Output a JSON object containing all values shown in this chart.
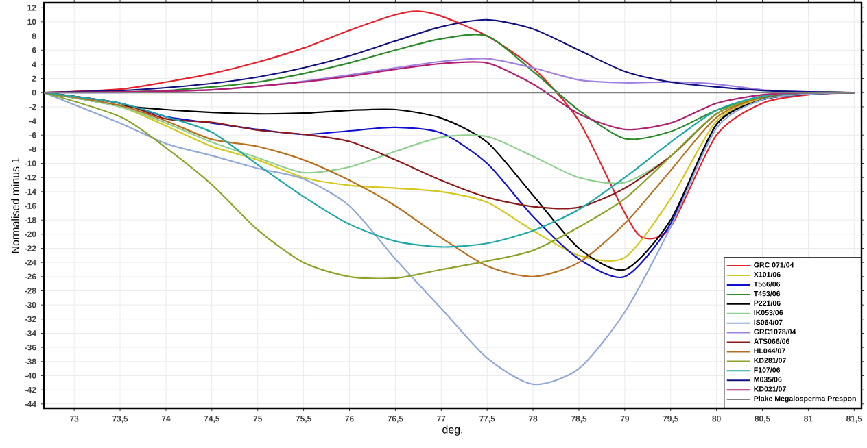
{
  "chart_data": {
    "type": "line",
    "xlabel": "deg.",
    "ylabel": "Normalised minus 1",
    "x": [
      72.67,
      73.5,
      74,
      74.5,
      75,
      75.5,
      76,
      76.5,
      77,
      77.5,
      78,
      78.5,
      79,
      79.5,
      80,
      80.5,
      81,
      81.5
    ],
    "xlim": [
      72.67,
      81.58
    ],
    "ylim": [
      -44.6,
      12.7
    ],
    "xticks": [
      73,
      {
        "value": 73.5,
        "label": "73,5"
      },
      74,
      {
        "value": 74.5,
        "label": "74,5"
      },
      75,
      {
        "value": 75.5,
        "label": "75,5"
      },
      76,
      {
        "value": 76.5,
        "label": "76,5"
      },
      77,
      {
        "value": 77.5,
        "label": "77,5"
      },
      78,
      {
        "value": 78.5,
        "label": "78,5"
      },
      79,
      {
        "value": 79.5,
        "label": "79,5"
      },
      80,
      {
        "value": 80.5,
        "label": "80,5"
      },
      81,
      {
        "value": 81.5,
        "label": "81,5"
      }
    ],
    "yticks": [
      12,
      10,
      8,
      6,
      4,
      2,
      0,
      -2,
      -4,
      -6,
      -8,
      -10,
      -12,
      -14,
      -16,
      -18,
      -20,
      -22,
      -24,
      -26,
      -28,
      -30,
      -32,
      -34,
      -36,
      -38,
      -40,
      -42,
      -44
    ],
    "grid": true,
    "legend": "bottom right",
    "marker": "none",
    "line_style": "solid",
    "series": [
      {
        "name": "GRC 071/04",
        "color": "#e8202a",
        "x": [
          72.67,
          73.5,
          74,
          74.5,
          75,
          75.5,
          76,
          76.5,
          76.75,
          77,
          77.5,
          78,
          78.5,
          79,
          79.2,
          79.5,
          80,
          80.5,
          81,
          81.5
        ],
        "values": [
          0,
          0.5,
          1.5,
          2.7,
          4.3,
          6.3,
          8.8,
          11,
          11.5,
          10.8,
          8,
          3.5,
          -4,
          -17,
          -20.5,
          -19,
          -6,
          -1.5,
          -0.3,
          0
        ]
      },
      {
        "name": "X101/06",
        "color": "#d4c81c",
        "values": [
          0,
          -2,
          -4.7,
          -7.6,
          -9.5,
          -12,
          -13.1,
          -13.5,
          -14,
          -15.5,
          -19.5,
          -23,
          -23.3,
          -15,
          -4,
          -0.8,
          0,
          0
        ]
      },
      {
        "name": "T566/06",
        "color": "#1010d0",
        "values": [
          0,
          -1.5,
          -3.4,
          -4.3,
          -5.2,
          -5.9,
          -5.4,
          -4.9,
          -5.7,
          -10,
          -17.5,
          -23.5,
          -26,
          -18.5,
          -4.5,
          -1,
          -0.2,
          0
        ]
      },
      {
        "name": "T453/06",
        "color": "#2a8a2a",
        "values": [
          0,
          0.1,
          0.3,
          0.8,
          1.5,
          2.7,
          4.2,
          6,
          7.6,
          8,
          3,
          -2.5,
          -6.5,
          -5.5,
          -2.5,
          -0.7,
          0,
          0
        ]
      },
      {
        "name": "P221/06",
        "color": "#000000",
        "values": [
          0,
          -1.8,
          -2.4,
          -2.8,
          -3,
          -2.9,
          -2.5,
          -2.4,
          -3.6,
          -7,
          -14.5,
          -22,
          -25,
          -18,
          -4.5,
          -1,
          -0.2,
          0
        ]
      },
      {
        "name": "IK053/06",
        "color": "#8fd08f",
        "values": [
          0,
          -2,
          -4.3,
          -7,
          -9.2,
          -11.3,
          -10.5,
          -8.3,
          -6.3,
          -6.2,
          -9,
          -12,
          -12.7,
          -9,
          -3,
          -0.6,
          0,
          0
        ]
      },
      {
        "name": "IS064/07",
        "color": "#8fa8d8",
        "values": [
          0,
          -4.3,
          -7.2,
          -8.9,
          -10.7,
          -12.2,
          -16,
          -23.5,
          -30.5,
          -37.5,
          -41.2,
          -39,
          -31,
          -19,
          -5,
          -1,
          -0.2,
          0
        ]
      },
      {
        "name": "GRC1078/04",
        "color": "#a080e0",
        "values": [
          0,
          0,
          0.2,
          0.4,
          0.9,
          1.6,
          2.5,
          3.5,
          4.4,
          4.8,
          3.5,
          1.8,
          1.4,
          1.5,
          1.2,
          0.4,
          0.1,
          0
        ]
      },
      {
        "name": "ATS066/06",
        "color": "#8b1a1a",
        "values": [
          0,
          -1.5,
          -3.7,
          -4.2,
          -5.3,
          -5.9,
          -6.9,
          -9.5,
          -12.4,
          -14.8,
          -16.1,
          -16.2,
          -13.5,
          -9,
          -3,
          -0.6,
          0,
          0
        ]
      },
      {
        "name": "HL044/07",
        "color": "#b87020",
        "values": [
          0,
          -1.8,
          -4,
          -6.6,
          -7.6,
          -9.5,
          -12.4,
          -16,
          -20.5,
          -24.5,
          -26,
          -24,
          -18.5,
          -11,
          -3.5,
          -0.6,
          0,
          0
        ]
      },
      {
        "name": "KD281/07",
        "color": "#8aa428",
        "values": [
          0,
          -3.4,
          -7.8,
          -13,
          -19.4,
          -24,
          -26,
          -26.2,
          -25,
          -23.8,
          -22.3,
          -19,
          -15,
          -9,
          -3,
          -0.5,
          0,
          0
        ]
      },
      {
        "name": "F107/06",
        "color": "#20a8a8",
        "values": [
          0,
          -1.5,
          -3.4,
          -5.6,
          -10.2,
          -14.7,
          -18.6,
          -21,
          -21.8,
          -21.3,
          -19.5,
          -16.5,
          -12,
          -7,
          -2.5,
          -0.5,
          0,
          0
        ]
      },
      {
        "name": "M035/06",
        "color": "#101080",
        "values": [
          0,
          0.3,
          0.7,
          1.3,
          2.2,
          3.5,
          5.2,
          7.3,
          9.3,
          10.3,
          9,
          6,
          3,
          1.5,
          0.8,
          0.3,
          0.1,
          0
        ]
      },
      {
        "name": "KD021/07",
        "color": "#b02070",
        "values": [
          0,
          0.1,
          0.2,
          0.4,
          0.9,
          1.5,
          2.3,
          3.3,
          4.1,
          4.2,
          1.2,
          -3,
          -5.2,
          -4.3,
          -1.5,
          -0.3,
          0,
          0
        ]
      },
      {
        "name": "Plake Megalosperma Prespon",
        "color": "#808080",
        "values": [
          0,
          0,
          0,
          0,
          0,
          0,
          0,
          0,
          0,
          0,
          0,
          0,
          0,
          0,
          0,
          0,
          0,
          0
        ]
      }
    ]
  }
}
